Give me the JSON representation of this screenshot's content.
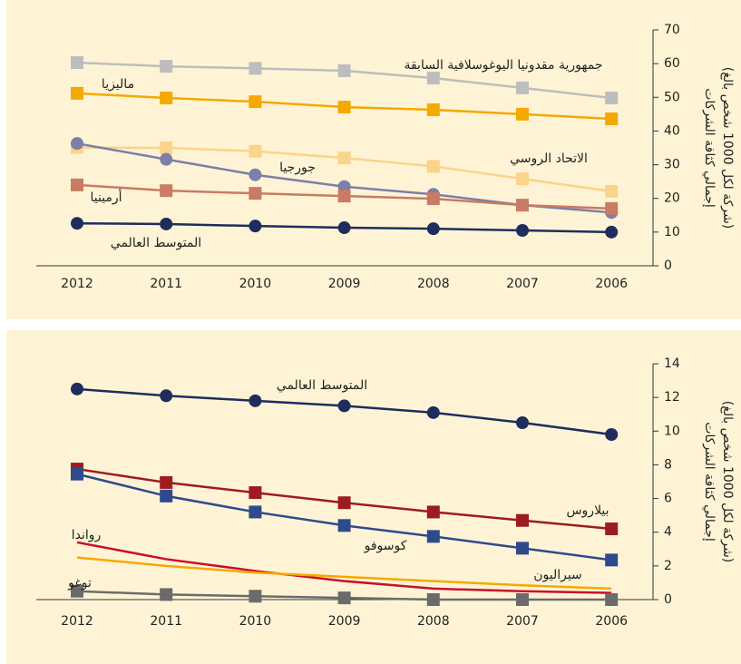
{
  "chart_data": [
    {
      "type": "line",
      "y_label_lines": [
        "إجمالي كثافة الشركات",
        "(شركة لكل 1000 شخص بالغ)"
      ],
      "categories": [
        "2012",
        "2011",
        "2010",
        "2009",
        "2008",
        "2007",
        "2006"
      ],
      "ylim": [
        0,
        70
      ],
      "yticks": [
        0,
        10,
        20,
        30,
        40,
        50,
        60,
        70
      ],
      "series": [
        {
          "name": "جمهورية مقدونيا اليوغوسلافية السابقة",
          "color": "#bdbdbd",
          "marker": "square",
          "values": [
            60.3,
            59.2,
            58.6,
            57.9,
            55.7,
            52.8,
            49.8
          ]
        },
        {
          "name": "ماليزيا",
          "color": "#f5a800",
          "marker": "square",
          "values": [
            51.2,
            49.8,
            48.7,
            47.1,
            46.3,
            45,
            43.6
          ]
        },
        {
          "name": "الاتحاد الروسي",
          "color": "#fbd38a",
          "marker": "square",
          "values": [
            35.1,
            35,
            34,
            32,
            29.5,
            25.8,
            22.1
          ]
        },
        {
          "name": "جورجيا",
          "color": "#7c7fa8",
          "marker": "circle",
          "values": [
            36.3,
            31.6,
            27,
            23.5,
            21.2,
            18,
            15.8
          ]
        },
        {
          "name": "أرمينيا",
          "color": "#c97b63",
          "marker": "square",
          "values": [
            24,
            22.3,
            21.5,
            20.7,
            19.9,
            18,
            17
          ]
        },
        {
          "name": "المتوسط العالمي",
          "color": "#1f2d5c",
          "marker": "circle",
          "values": [
            12.6,
            12.4,
            11.8,
            11.3,
            11,
            10.5,
            10
          ]
        }
      ]
    },
    {
      "type": "line",
      "y_label_lines": [
        "إجمالي كثافة الشركات",
        "(شركة لكل 1000 شخص بالغ)"
      ],
      "categories": [
        "2012",
        "2011",
        "2010",
        "2009",
        "2008",
        "2007",
        "2006"
      ],
      "ylim": [
        0,
        14
      ],
      "yticks": [
        0,
        2,
        4,
        6,
        8,
        10,
        12,
        14
      ],
      "series": [
        {
          "name": "المتوسط العالمي",
          "color": "#1f2d5c",
          "marker": "circle",
          "values": [
            12.5,
            12.1,
            11.8,
            11.5,
            11.1,
            10.5,
            9.8
          ]
        },
        {
          "name": "بيلاروس",
          "color": "#9e1b20",
          "marker": "square",
          "values": [
            7.75,
            6.95,
            6.35,
            5.75,
            5.2,
            4.7,
            4.2
          ]
        },
        {
          "name": "كوسوفو",
          "color": "#2e4a8c",
          "marker": "square",
          "values": [
            7.45,
            6.15,
            5.2,
            4.4,
            3.75,
            3.05,
            2.35
          ]
        },
        {
          "name": "رواندا",
          "color": "#c8102e",
          "marker": null,
          "values": [
            3.4,
            2.4,
            1.7,
            1.1,
            0.65,
            0.5,
            0.4
          ]
        },
        {
          "name": "سيراليون",
          "color": "#f5a800",
          "marker": null,
          "values": [
            2.5,
            2,
            1.6,
            1.35,
            1.1,
            0.85,
            0.65
          ]
        },
        {
          "name": "توغو",
          "color": "#6b6b6b",
          "marker": "square",
          "values": [
            0.5,
            0.3,
            0.2,
            0.1,
            0,
            0,
            0
          ]
        }
      ]
    }
  ]
}
